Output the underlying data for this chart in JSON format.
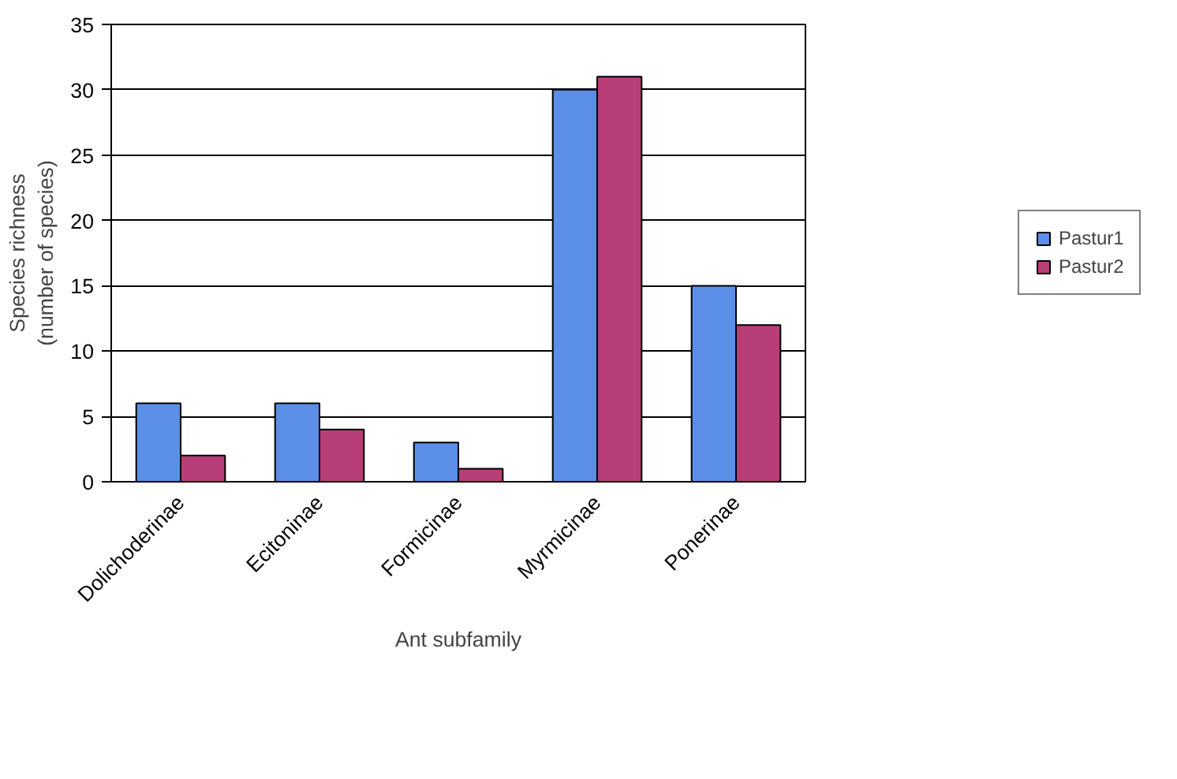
{
  "chart_data": {
    "type": "bar",
    "xlabel": "Ant subfamily",
    "ylabel": "Species richness\n(number of species)",
    "categories": [
      "Dolichoderinae",
      "Ecitoninae",
      "Formicinae",
      "Myrmicinae",
      "Ponerinae"
    ],
    "series": [
      {
        "name": "Pastur1",
        "color": "#5b8ee6",
        "values": [
          6,
          6,
          3,
          30,
          15
        ]
      },
      {
        "name": "Pastur2",
        "color": "#b83e78",
        "values": [
          2,
          4,
          1,
          31,
          12
        ]
      }
    ],
    "ylim": [
      0,
      35
    ],
    "yticks": [
      0,
      5,
      10,
      15,
      20,
      25,
      30,
      35
    ],
    "grid": "y",
    "legend": "right"
  }
}
